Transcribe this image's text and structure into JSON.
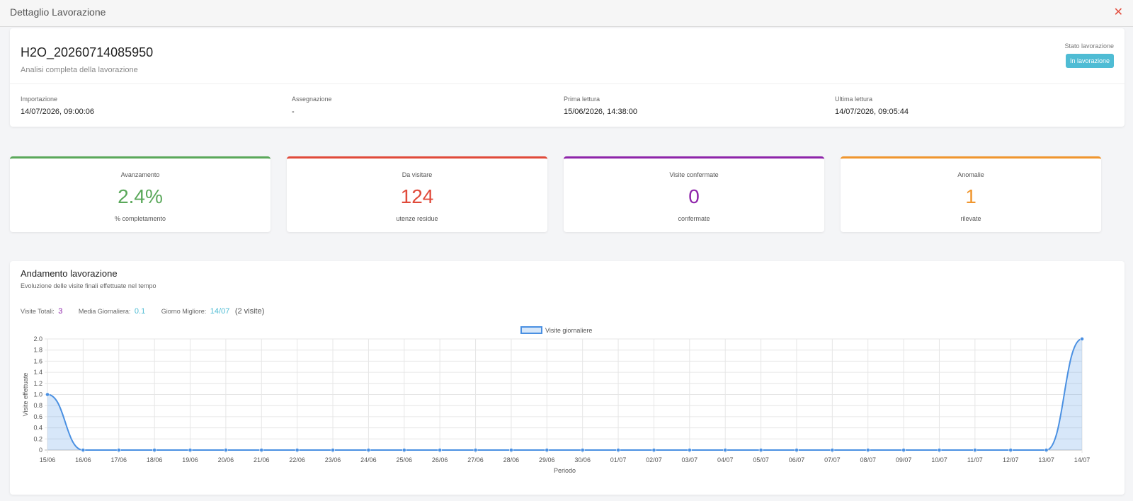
{
  "modal": {
    "title": "Dettaglio Lavorazione",
    "close_glyph": "✕"
  },
  "job": {
    "title": "H2O_20260714085950",
    "subtitle": "Analisi completa della lavorazione",
    "state_label": "Stato lavorazione",
    "state_value": "In lavorazione",
    "fields": [
      {
        "label": "Importazione",
        "value": "14/07/2026, 09:00:06"
      },
      {
        "label": "Assegnazione",
        "value": "-"
      },
      {
        "label": "Prima lettura",
        "value": "15/06/2026, 14:38:00"
      },
      {
        "label": "Ultima lettura",
        "value": "14/07/2026, 09:05:44"
      }
    ]
  },
  "stats": [
    {
      "label": "Avanzamento",
      "value": "2.4%",
      "sub": "% completamento",
      "color": "#5aa85a"
    },
    {
      "label": "Da visitare",
      "value": "124",
      "sub": "utenze residue",
      "color": "#e04a3a"
    },
    {
      "label": "Visite confermate",
      "value": "0",
      "sub": "confermate",
      "color": "#8e24aa"
    },
    {
      "label": "Anomalie",
      "value": "1",
      "sub": "rilevate",
      "color": "#f0962e"
    }
  ],
  "chart_section": {
    "title": "Andamento lavorazione",
    "subtitle": "Evoluzione delle visite finali effettuate nel tempo",
    "summary": {
      "total_label": "Visite Totali:",
      "total_value": "3",
      "avg_label": "Media Giornaliera:",
      "avg_value": "0.1",
      "best_label": "Giorno Migliore:",
      "best_value": "14/07",
      "best_extra": "(2 visite)"
    }
  },
  "chart_data": {
    "type": "line",
    "categories": [
      "15/06",
      "16/06",
      "17/06",
      "18/06",
      "19/06",
      "20/06",
      "21/06",
      "22/06",
      "23/06",
      "24/06",
      "25/06",
      "26/06",
      "27/06",
      "28/06",
      "29/06",
      "30/06",
      "01/07",
      "02/07",
      "03/07",
      "04/07",
      "05/07",
      "06/07",
      "07/07",
      "08/07",
      "09/07",
      "10/07",
      "11/07",
      "12/07",
      "13/07",
      "14/07"
    ],
    "series": [
      {
        "name": "Visite giornaliere",
        "values": [
          1,
          0,
          0,
          0,
          0,
          0,
          0,
          0,
          0,
          0,
          0,
          0,
          0,
          0,
          0,
          0,
          0,
          0,
          0,
          0,
          0,
          0,
          0,
          0,
          0,
          0,
          0,
          0,
          0,
          2
        ],
        "color": "#4a90e2"
      }
    ],
    "xlabel": "Periodo",
    "ylabel": "Visite effettuate",
    "ylim": [
      0,
      2
    ],
    "yticks": [
      "0",
      "0.2",
      "0.4",
      "0.6",
      "0.8",
      "1.0",
      "1.2",
      "1.4",
      "1.6",
      "1.8",
      "2.0"
    ],
    "legend": "top-center",
    "grid": true
  }
}
